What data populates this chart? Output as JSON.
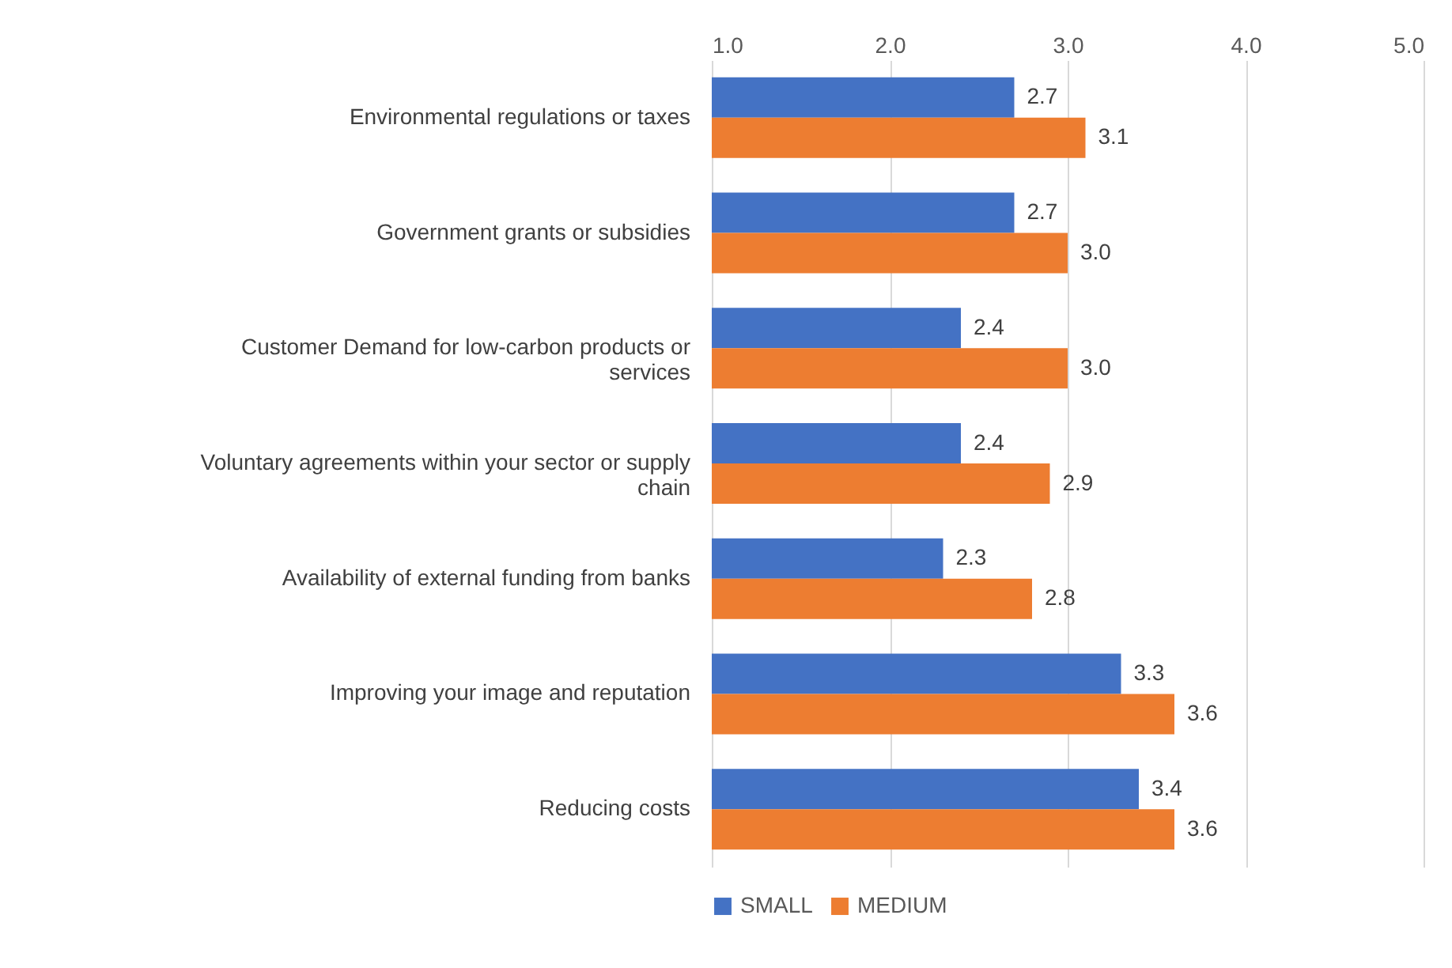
{
  "chart_data": {
    "type": "bar",
    "orientation": "horizontal",
    "categories": [
      "Environmental regulations or taxes",
      "Government grants or subsidies",
      "Customer Demand for low-carbon products or services",
      "Voluntary agreements within your sector or supply chain",
      "Availability of external funding from banks",
      "Improving your image and reputation",
      "Reducing costs"
    ],
    "series": [
      {
        "name": "SMALL",
        "color": "#4472c4",
        "values": [
          2.7,
          2.7,
          2.4,
          2.4,
          2.3,
          3.3,
          3.4
        ],
        "value_labels": [
          "2.7",
          "2.7",
          "2.4",
          "2.4",
          "2.3",
          "3.3",
          "3.4"
        ]
      },
      {
        "name": "MEDIUM",
        "color": "#ed7d31",
        "values": [
          3.1,
          3.0,
          3.0,
          2.9,
          2.8,
          3.6,
          3.6
        ],
        "value_labels": [
          "3.1",
          "3.0",
          "3.0",
          "2.9",
          "2.8",
          "3.6",
          "3.6"
        ]
      }
    ],
    "xlim": [
      1,
      5
    ],
    "xticks": [
      {
        "value": 1,
        "label": "1.0"
      },
      {
        "value": 2,
        "label": "2.0"
      },
      {
        "value": 3,
        "label": "3.0"
      },
      {
        "value": 4,
        "label": "4.0"
      },
      {
        "value": 5,
        "label": "5.0"
      }
    ],
    "grid": "x",
    "legend": "bottom"
  }
}
